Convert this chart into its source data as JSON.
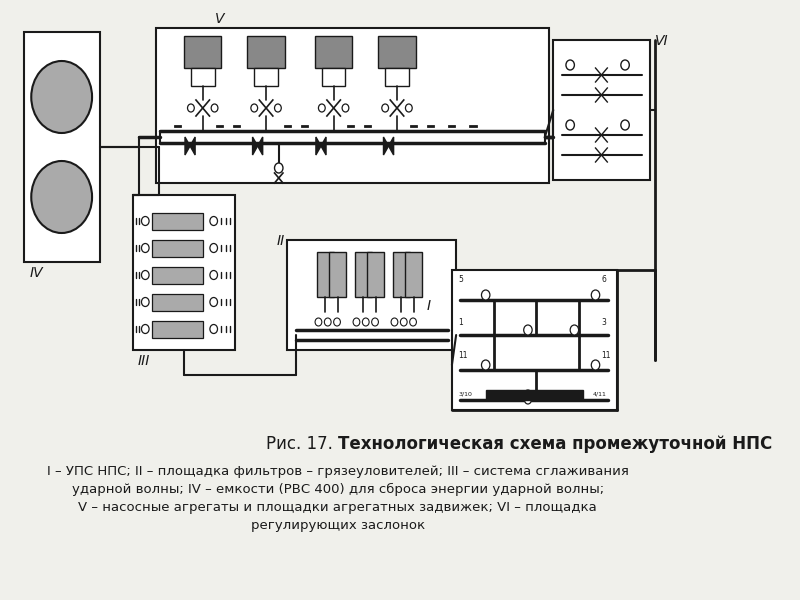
{
  "bg_color": "#f0f0eb",
  "line_color": "#1a1a1a",
  "gray_fill": "#888888",
  "light_gray": "#aaaaaa",
  "white": "#ffffff",
  "caption_line1": "I – УПС НПС; II – площадка фильтров – грязеуловителей; III – система сглаживания",
  "caption_line2": "ударной волны; IV – емкости (РВС 400) для сброса энергии ударной волны;",
  "caption_line3": "V – насосные агрегаты и площадки агрегатных задвижек; VI – площадка",
  "caption_line4": "регулирующих заслонок",
  "title_normal": "Рис. 17. ",
  "title_bold": "Технологическая схема промежуточной НПС",
  "label_I": "I",
  "label_II": "II",
  "label_III": "III",
  "label_IV": "IV",
  "label_V": "V",
  "label_VI": "VI"
}
